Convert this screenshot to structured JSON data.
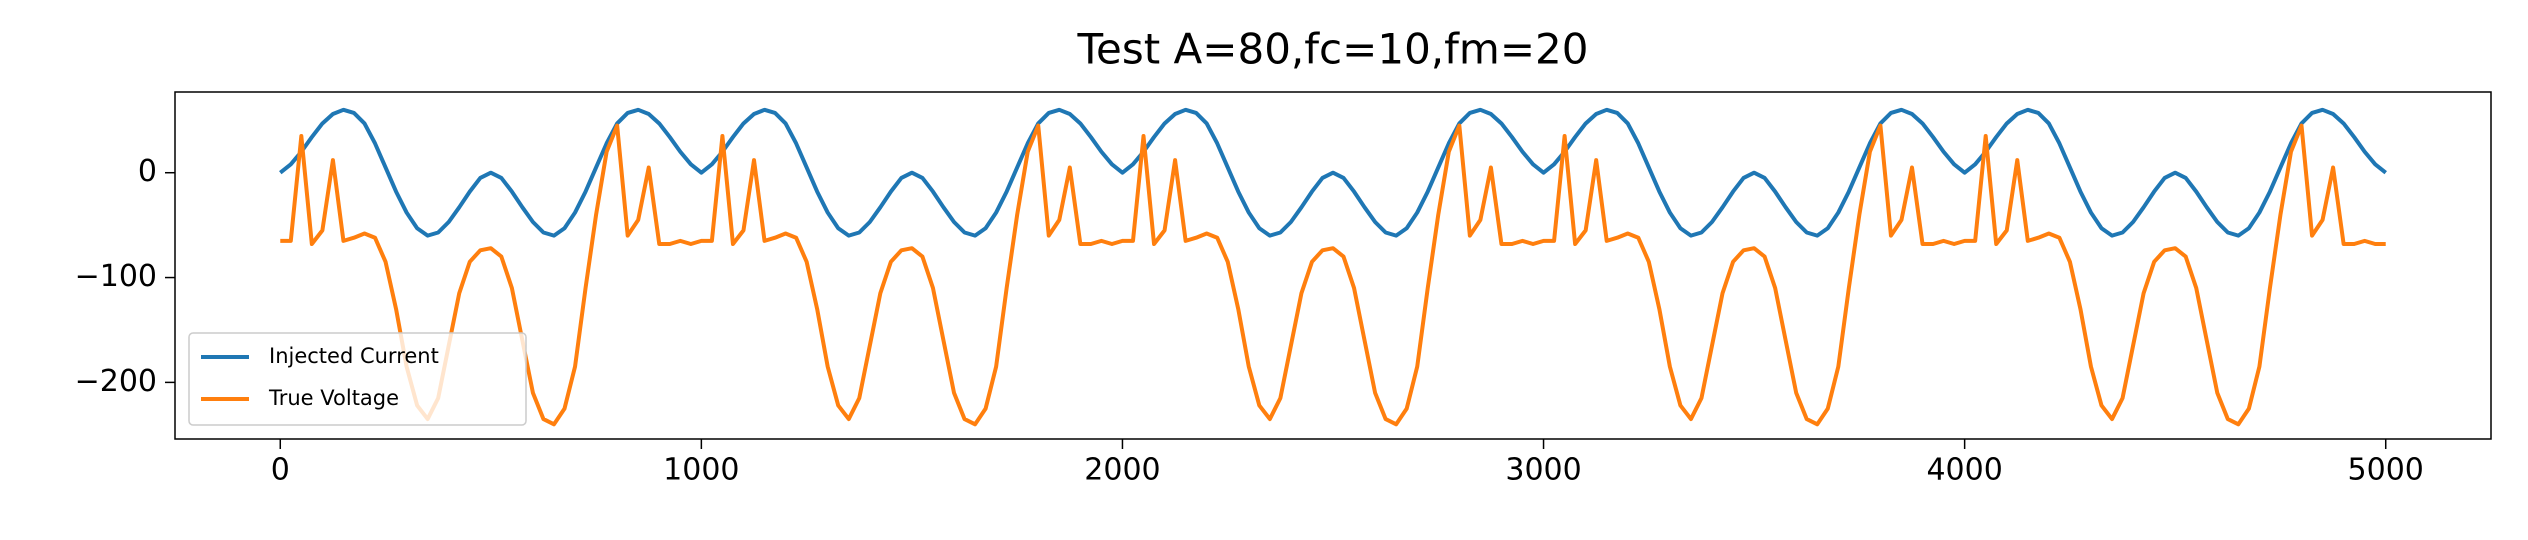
{
  "chart_data": {
    "type": "line",
    "title": "Test A=80,fc=10,fm=20",
    "x": [
      0,
      25,
      50,
      75,
      100,
      125,
      150,
      175,
      200,
      225,
      250,
      275,
      300,
      325,
      350,
      375,
      400,
      425,
      450,
      475,
      500,
      525,
      550,
      575,
      600,
      625,
      650,
      675,
      700,
      725,
      750,
      775,
      800,
      825,
      850,
      875,
      900,
      925,
      950,
      975,
      1000,
      1025,
      1050,
      1075,
      1100,
      1125,
      1150,
      1175,
      1200,
      1225,
      1250,
      1275,
      1300,
      1325,
      1350,
      1375,
      1400,
      1425,
      1450,
      1475,
      1500,
      1525,
      1550,
      1575,
      1600,
      1625,
      1650,
      1675,
      1700,
      1725,
      1750,
      1775,
      1800,
      1825,
      1850,
      1875,
      1900,
      1925,
      1950,
      1975,
      2000,
      2025,
      2050,
      2075,
      2100,
      2125,
      2150,
      2175,
      2200,
      2225,
      2250,
      2275,
      2300,
      2325,
      2350,
      2375,
      2400,
      2425,
      2450,
      2475,
      2500,
      2525,
      2550,
      2575,
      2600,
      2625,
      2650,
      2675,
      2700,
      2725,
      2750,
      2775,
      2800,
      2825,
      2850,
      2875,
      2900,
      2925,
      2950,
      2975,
      3000,
      3025,
      3050,
      3075,
      3100,
      3125,
      3150,
      3175,
      3200,
      3225,
      3250,
      3275,
      3300,
      3325,
      3350,
      3375,
      3400,
      3425,
      3450,
      3475,
      3500,
      3525,
      3550,
      3575,
      3600,
      3625,
      3650,
      3675,
      3700,
      3725,
      3750,
      3775,
      3800,
      3825,
      3850,
      3875,
      3900,
      3925,
      3950,
      3975,
      4000,
      4025,
      4050,
      4075,
      4100,
      4125,
      4150,
      4175,
      4200,
      4225,
      4250,
      4275,
      4300,
      4325,
      4350,
      4375,
      4400,
      4425,
      4450,
      4475,
      4500,
      4525,
      4550,
      4575,
      4600,
      4625,
      4650,
      4675,
      4700,
      4725,
      4750,
      4775,
      4800,
      4825,
      4850,
      4875,
      4900,
      4925,
      4950,
      4975,
      5000
    ],
    "series": [
      {
        "name": "Injected Current",
        "color": "#1f77b4",
        "values": [
          0,
          8,
          20,
          34,
          47,
          56,
          60,
          57,
          47,
          28,
          5,
          -18,
          -38,
          -53,
          -60,
          -57,
          -47,
          -33,
          -18,
          -5,
          0,
          -5,
          -18,
          -33,
          -47,
          -57,
          -60,
          -53,
          -38,
          -18,
          5,
          28,
          47,
          57,
          60,
          56,
          47,
          34,
          20,
          8,
          0,
          8,
          20,
          34,
          47,
          56,
          60,
          57,
          47,
          28,
          5,
          -18,
          -38,
          -53,
          -60,
          -57,
          -47,
          -33,
          -18,
          -5,
          0,
          -5,
          -18,
          -33,
          -47,
          -57,
          -60,
          -53,
          -38,
          -18,
          5,
          28,
          47,
          57,
          60,
          56,
          47,
          34,
          20,
          8,
          0,
          8,
          20,
          34,
          47,
          56,
          60,
          57,
          47,
          28,
          5,
          -18,
          -38,
          -53,
          -60,
          -57,
          -47,
          -33,
          -18,
          -5,
          0,
          -5,
          -18,
          -33,
          -47,
          -57,
          -60,
          -53,
          -38,
          -18,
          5,
          28,
          47,
          57,
          60,
          56,
          47,
          34,
          20,
          8,
          0,
          8,
          20,
          34,
          47,
          56,
          60,
          57,
          47,
          28,
          5,
          -18,
          -38,
          -53,
          -60,
          -57,
          -47,
          -33,
          -18,
          -5,
          0,
          -5,
          -18,
          -33,
          -47,
          -57,
          -60,
          -53,
          -38,
          -18,
          5,
          28,
          47,
          57,
          60,
          56,
          47,
          34,
          20,
          8,
          0,
          8,
          20,
          34,
          47,
          56,
          60,
          57,
          47,
          28,
          5,
          -18,
          -38,
          -53,
          -60,
          -57,
          -47,
          -33,
          -18,
          -5,
          0,
          -5,
          -18,
          -33,
          -47,
          -57,
          -60,
          -53,
          -38,
          -18,
          5,
          28,
          47,
          57,
          60,
          56,
          47,
          34,
          20,
          8,
          0
        ]
      },
      {
        "name": "True Voltage",
        "color": "#ff7f0e",
        "values": [
          -65,
          -65,
          35,
          -68,
          -55,
          12,
          -65,
          -62,
          -58,
          -62,
          -85,
          -130,
          -185,
          -222,
          -235,
          -215,
          -165,
          -115,
          -85,
          -74,
          -72,
          -80,
          -110,
          -160,
          -210,
          -235,
          -240,
          -225,
          -185,
          -110,
          -40,
          20,
          45,
          -60,
          -45,
          5,
          -68,
          -68,
          -65,
          -68,
          -65,
          -65,
          35,
          -68,
          -55,
          12,
          -65,
          -62,
          -58,
          -62,
          -85,
          -130,
          -185,
          -222,
          -235,
          -215,
          -165,
          -115,
          -85,
          -74,
          -72,
          -80,
          -110,
          -160,
          -210,
          -235,
          -240,
          -225,
          -185,
          -110,
          -40,
          20,
          45,
          -60,
          -45,
          5,
          -68,
          -68,
          -65,
          -68,
          -65,
          -65,
          35,
          -68,
          -55,
          12,
          -65,
          -62,
          -58,
          -62,
          -85,
          -130,
          -185,
          -222,
          -235,
          -215,
          -165,
          -115,
          -85,
          -74,
          -72,
          -80,
          -110,
          -160,
          -210,
          -235,
          -240,
          -225,
          -185,
          -110,
          -40,
          20,
          45,
          -60,
          -45,
          5,
          -68,
          -68,
          -65,
          -68,
          -65,
          -65,
          35,
          -68,
          -55,
          12,
          -65,
          -62,
          -58,
          -62,
          -85,
          -130,
          -185,
          -222,
          -235,
          -215,
          -165,
          -115,
          -85,
          -74,
          -72,
          -80,
          -110,
          -160,
          -210,
          -235,
          -240,
          -225,
          -185,
          -110,
          -40,
          20,
          45,
          -60,
          -45,
          5,
          -68,
          -68,
          -65,
          -68,
          -65,
          -65,
          35,
          -68,
          -55,
          12,
          -65,
          -62,
          -58,
          -62,
          -85,
          -130,
          -185,
          -222,
          -235,
          -215,
          -165,
          -115,
          -85,
          -74,
          -72,
          -80,
          -110,
          -160,
          -210,
          -235,
          -240,
          -225,
          -185,
          -110,
          -40,
          20,
          45,
          -60,
          -45,
          5,
          -68,
          -68,
          -65,
          -68,
          -68
        ]
      }
    ],
    "xlim": [
      -250,
      5250
    ],
    "xticks": [
      0,
      1000,
      2000,
      3000,
      4000,
      5000
    ],
    "ylim": [
      -254,
      77
    ],
    "yticks": [
      {
        "value": -200,
        "label": "−200"
      },
      {
        "value": -100,
        "label": "−100"
      },
      0
    ],
    "legend": "lower left",
    "grid": false
  }
}
